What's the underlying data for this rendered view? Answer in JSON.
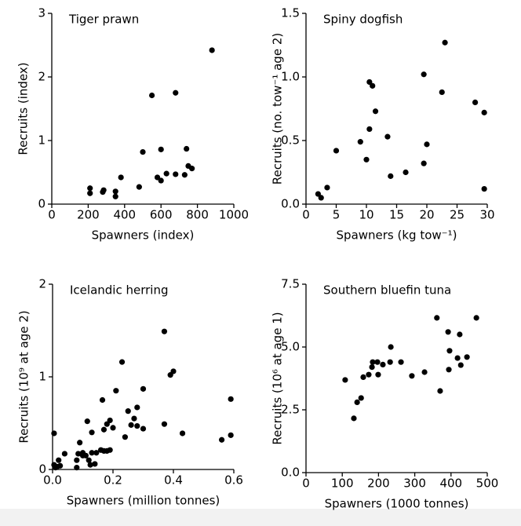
{
  "chart_data": [
    {
      "type": "scatter",
      "title": "Tiger prawn",
      "x_label": "Spawners (index)",
      "y_label": "Recruits (index)",
      "color": "#000000",
      "x": [
        210,
        210,
        280,
        285,
        350,
        350,
        380,
        480,
        500,
        550,
        580,
        600,
        600,
        630,
        680,
        680,
        730,
        740,
        750,
        770,
        880
      ],
      "y": [
        0.25,
        0.17,
        0.19,
        0.22,
        0.12,
        0.2,
        0.42,
        0.27,
        0.82,
        1.71,
        0.42,
        0.86,
        0.37,
        0.48,
        0.47,
        1.75,
        0.46,
        0.87,
        0.6,
        0.56,
        2.42
      ],
      "xlim": [
        0,
        1000
      ],
      "ylim": [
        0,
        3
      ],
      "xticks": [
        0,
        200,
        400,
        600,
        800,
        1000
      ],
      "yticks": [
        0,
        1,
        2,
        3
      ]
    },
    {
      "type": "scatter",
      "title": "Spiny dogfish",
      "x_label": "Spawners (kg tow⁻¹)",
      "y_label": "Recruits (no. tow⁻¹ age 2)",
      "color": "#000000",
      "x": [
        2,
        2.5,
        3.5,
        5,
        9,
        10,
        10.5,
        10.5,
        11,
        11.5,
        13.5,
        14,
        16.5,
        19.5,
        19.5,
        20,
        22.5,
        23,
        28,
        29.5,
        29.5
      ],
      "y": [
        0.08,
        0.05,
        0.13,
        0.42,
        0.49,
        0.35,
        0.59,
        0.96,
        0.93,
        0.73,
        0.53,
        0.22,
        0.25,
        0.32,
        1.02,
        0.47,
        0.88,
        1.27,
        0.8,
        0.72,
        0.12
      ],
      "xlim": [
        0,
        30
      ],
      "ylim": [
        0,
        1.5
      ],
      "xticks": [
        0,
        5,
        10,
        15,
        20,
        25,
        30
      ],
      "yticks": [
        {
          "value": 0,
          "label": "0.0"
        },
        0.5,
        {
          "value": 1,
          "label": "1.0"
        },
        1.5
      ]
    },
    {
      "type": "scatter",
      "title": "Icelandic herring",
      "x_label": "Spawners (million tonnes)",
      "y_label": "Recruits (10⁹ at age 2)",
      "color": "#000000",
      "x": [
        0.005,
        0.005,
        0.01,
        0.015,
        0.02,
        0.025,
        0.04,
        0.08,
        0.08,
        0.085,
        0.09,
        0.1,
        0.1,
        0.11,
        0.115,
        0.12,
        0.125,
        0.13,
        0.13,
        0.14,
        0.145,
        0.16,
        0.165,
        0.17,
        0.17,
        0.18,
        0.18,
        0.19,
        0.19,
        0.2,
        0.21,
        0.23,
        0.24,
        0.25,
        0.26,
        0.27,
        0.28,
        0.28,
        0.3,
        0.3,
        0.37,
        0.37,
        0.39,
        0.4,
        0.43,
        0.56,
        0.59,
        0.59
      ],
      "y": [
        0.39,
        0.05,
        0.02,
        0.03,
        0.1,
        0.04,
        0.17,
        0.1,
        0.02,
        0.17,
        0.29,
        0.15,
        0.18,
        0.15,
        0.52,
        0.1,
        0.05,
        0.18,
        0.4,
        0.06,
        0.18,
        0.21,
        0.75,
        0.43,
        0.2,
        0.2,
        0.49,
        0.53,
        0.21,
        0.45,
        0.85,
        1.16,
        0.35,
        0.63,
        0.48,
        0.55,
        0.67,
        0.47,
        0.87,
        0.44,
        1.49,
        0.49,
        1.02,
        1.06,
        0.39,
        0.32,
        0.37,
        0.76
      ],
      "xlim": [
        0,
        0.6
      ],
      "ylim": [
        0,
        2
      ],
      "xticks": [
        {
          "value": 0,
          "label": "0.0"
        },
        0.2,
        0.4,
        0.6
      ],
      "yticks": [
        0,
        1,
        2
      ]
    },
    {
      "type": "scatter",
      "title": "Southern bluefin tuna",
      "x_label": "Spawners (1000 tonnes)",
      "y_label": "Recruits (10⁶ at age 1)",
      "color": "#000000",
      "x": [
        108,
        132,
        141,
        152,
        158,
        173,
        182,
        184,
        197,
        199,
        212,
        232,
        234,
        262,
        292,
        327,
        361,
        370,
        392,
        396,
        394,
        418,
        424,
        427,
        444,
        470
      ],
      "y": [
        3.69,
        2.16,
        2.8,
        2.97,
        3.8,
        3.9,
        4.2,
        4.4,
        4.4,
        3.9,
        4.3,
        4.4,
        5.0,
        4.4,
        3.85,
        4.0,
        6.16,
        3.25,
        5.6,
        4.85,
        4.1,
        4.56,
        5.5,
        4.28,
        4.6,
        6.16
      ],
      "xlim": [
        0,
        500
      ],
      "ylim": [
        0,
        7.5
      ],
      "xticks": [
        0,
        100,
        200,
        300,
        400,
        500
      ],
      "yticks": [
        {
          "value": 0,
          "label": "0.0"
        },
        2.5,
        {
          "value": 5,
          "label": "5.0"
        },
        7.5
      ]
    }
  ]
}
